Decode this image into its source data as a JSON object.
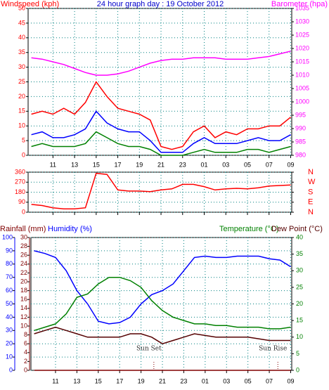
{
  "chart_data": [
    {
      "type": "line",
      "title": "24 hour graph day : 19 October 2012",
      "ylabel": "Windspeed (kph)",
      "y2label": "Barometer (hpa)",
      "ycolor": "#ff0000",
      "y2color": "#ff00ff",
      "grid": true,
      "x": [
        9,
        10,
        11,
        12,
        13,
        14,
        15,
        16,
        17,
        18,
        19,
        20,
        21,
        22,
        23,
        24,
        25,
        26,
        27,
        28,
        29,
        30,
        31,
        32,
        33
      ],
      "xlim": [
        8.7,
        33.1
      ],
      "xticks": [
        11,
        13,
        15,
        17,
        19,
        21,
        23,
        {
          "value": 25,
          "label": "01"
        },
        {
          "value": 27,
          "label": "03"
        },
        {
          "value": 29,
          "label": "05"
        },
        {
          "value": 31,
          "label": "07"
        },
        {
          "value": 33,
          "label": "09"
        }
      ],
      "ylim": [
        0,
        50
      ],
      "yticks": [
        0,
        5,
        10,
        15,
        20,
        25,
        30,
        35,
        40,
        45,
        50
      ],
      "y2lim": [
        980,
        1035
      ],
      "y2ticks": [
        980,
        985,
        990,
        995,
        1000,
        1005,
        1010,
        1015,
        1020,
        1025,
        1030,
        1035
      ],
      "series": [
        {
          "color": "#ff0000",
          "values": [
            14,
            15,
            14,
            16,
            14,
            18,
            25,
            20,
            16,
            15,
            14,
            12,
            3,
            2,
            3,
            8,
            10,
            6,
            8,
            7,
            9,
            9,
            10,
            10,
            13
          ]
        },
        {
          "color": "#0000ff",
          "values": [
            7,
            8,
            6,
            6,
            7,
            9,
            15,
            11,
            9,
            8,
            8,
            5,
            1,
            1,
            1,
            4,
            6,
            4,
            4,
            4,
            5,
            6,
            5,
            5,
            7
          ]
        },
        {
          "color": "#008000",
          "values": [
            3,
            4,
            3,
            3,
            3,
            4,
            8,
            6,
            4,
            3,
            3,
            2,
            0,
            0,
            0,
            1,
            2,
            1,
            1,
            1,
            2,
            2,
            1,
            2,
            3
          ]
        },
        {
          "color": "#ff00ff",
          "axis": "y2",
          "values": [
            1016.5,
            1016,
            1015,
            1014,
            1012.5,
            1011,
            1010,
            1010,
            1010.5,
            1011.5,
            1013,
            1014.5,
            1015.5,
            1016,
            1016,
            1016.5,
            1016.5,
            1016.5,
            1016,
            1016,
            1016,
            1016.5,
            1017,
            1018,
            1019
          ]
        }
      ]
    },
    {
      "type": "line",
      "ycolor": "#ff0000",
      "y2color": "#ff0000",
      "grid": true,
      "x": [
        9,
        10,
        11,
        12,
        13,
        14,
        15,
        16,
        17,
        18,
        19,
        20,
        21,
        22,
        23,
        24,
        25,
        26,
        27,
        28,
        29,
        30,
        31,
        32,
        33
      ],
      "xlim": [
        8.7,
        33.1
      ],
      "ylim": [
        0,
        360
      ],
      "yticks": [
        0,
        90,
        180,
        270,
        360
      ],
      "y2lim": [
        0,
        360
      ],
      "y2ticks": [
        {
          "value": 0,
          "label": "N"
        },
        {
          "value": 90,
          "label": "E"
        },
        {
          "value": 180,
          "label": "S"
        },
        {
          "value": 270,
          "label": "W"
        },
        {
          "value": 360,
          "label": "N"
        }
      ],
      "series": [
        {
          "color": "#ff0000",
          "values": [
            70,
            60,
            40,
            30,
            30,
            40,
            350,
            340,
            200,
            190,
            190,
            185,
            200,
            210,
            250,
            250,
            230,
            200,
            210,
            215,
            210,
            220,
            235,
            240,
            245
          ]
        }
      ]
    },
    {
      "type": "line",
      "ycolor": "#0000ff",
      "y3color": "#800000",
      "y2color": "#008000",
      "grid": true,
      "x": [
        9,
        10,
        11,
        12,
        13,
        14,
        15,
        16,
        17,
        18,
        19,
        20,
        21,
        22,
        23,
        24,
        25,
        26,
        27,
        28,
        29,
        30,
        31,
        32,
        33
      ],
      "xlim": [
        8.7,
        33.1
      ],
      "xticks": [
        11,
        13,
        15,
        17,
        19,
        21,
        23,
        {
          "value": 25,
          "label": "01"
        },
        {
          "value": 27,
          "label": "03"
        },
        {
          "value": 29,
          "label": "05"
        },
        {
          "value": 31,
          "label": "07"
        },
        {
          "value": 33,
          "label": "09"
        }
      ],
      "ylim": [
        0,
        100
      ],
      "yticks": [
        0,
        10,
        20,
        30,
        40,
        50,
        60,
        70,
        80,
        90,
        100
      ],
      "y3lim": [
        0,
        30
      ],
      "y3ticks": [
        0,
        2,
        4,
        6,
        8,
        10,
        12,
        14,
        16,
        18,
        20,
        22,
        24,
        26,
        28,
        30
      ],
      "y2lim": [
        0,
        40
      ],
      "y2ticks": [
        0,
        5,
        10,
        15,
        20,
        25,
        30,
        35,
        40
      ],
      "series": [
        {
          "name": "Rainfall (mm)",
          "color": "#800000",
          "axis": "y3",
          "values": [
            0,
            0,
            0,
            0,
            0,
            0,
            0,
            0,
            0,
            0,
            0,
            0,
            0,
            0,
            0,
            0,
            0,
            0,
            0,
            0,
            0,
            0,
            0,
            0,
            0
          ]
        },
        {
          "name": "Humidity (%)",
          "color": "#0000ff",
          "values": [
            90,
            88,
            85,
            75,
            60,
            50,
            37,
            35,
            36,
            40,
            50,
            57,
            60,
            65,
            75,
            85,
            86,
            85,
            85,
            86,
            86,
            86,
            84,
            83,
            78
          ]
        },
        {
          "name": "Temperature (°C)",
          "color": "#008000",
          "axis": "y2",
          "values": [
            12,
            13,
            14,
            17,
            22,
            23,
            26,
            28,
            28,
            27,
            25,
            21,
            18,
            16,
            15,
            14,
            14,
            13.5,
            13.5,
            13,
            13,
            13,
            12.5,
            12.5,
            13
          ]
        },
        {
          "name": "Dew Point (°C)",
          "color": "#550000",
          "axis": "y2",
          "values": [
            11,
            12,
            13,
            12,
            11,
            10,
            10,
            10,
            10,
            11,
            11,
            10,
            8,
            9,
            10,
            11,
            10.5,
            10,
            10,
            10,
            10,
            9.5,
            9,
            9,
            9
          ]
        }
      ],
      "annotations": [
        {
          "text": "Sun Set",
          "x": 20.2
        },
        {
          "text": "Sun Rise",
          "x": 31.8
        }
      ]
    }
  ]
}
